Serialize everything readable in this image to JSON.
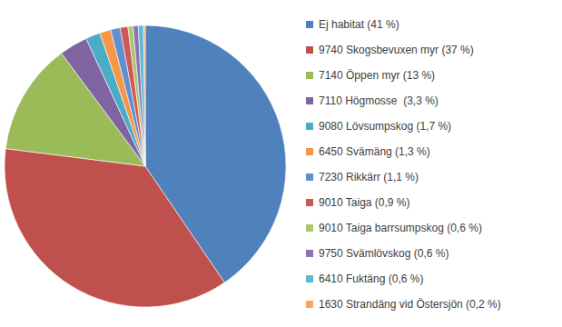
{
  "chart_data": {
    "type": "pie",
    "categories": [
      "Ej habitat (41 %)",
      "9740 Skogsbevuxen myr (37 %)",
      "7140 Öppen myr (13 %)",
      "7110 Högmosse  (3,3 %)",
      "9080 Lövsumpskog (1,7 %)",
      "6450 Svämäng (1,3 %)",
      "7230 Rikkärr (1,1 %)",
      "9010 Taiga (0,9 %)",
      "9010 Taiga barrsumpskog (0,6 %)",
      "9750 Svämlövskog (0,6 %)",
      "6410 Fuktäng (0,6 %)",
      "1630 Strandäng vid Östersjön (0,2 %)"
    ],
    "values": [
      41,
      37,
      13,
      3.3,
      1.7,
      1.3,
      1.1,
      0.9,
      0.6,
      0.6,
      0.6,
      0.2
    ],
    "colors": [
      "#4f81bd",
      "#c0504d",
      "#9bbb59",
      "#8064a2",
      "#4bacc6",
      "#f79646",
      "#5f8fcc",
      "#ce5856",
      "#a8c86a",
      "#8e72b1",
      "#5bbad5",
      "#f9a65a"
    ],
    "legend": "right",
    "data_labels": false
  }
}
